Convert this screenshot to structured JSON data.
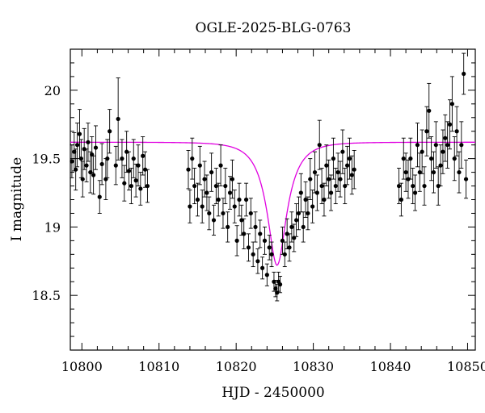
{
  "chart_data": {
    "type": "scatter",
    "title": "OGLE-2025-BLG-0763",
    "xlabel": "HJD - 2450000",
    "ylabel": "I magnitude",
    "xlim": [
      10798.5,
      10851
    ],
    "ylim": [
      20.3,
      18.1
    ],
    "y_inverted": true,
    "grid": false,
    "xticks": [
      10800,
      10810,
      10820,
      10830,
      10840,
      10850
    ],
    "yticks": [
      18.5,
      19,
      19.5,
      20
    ],
    "ytick_labels": [
      "18.5",
      "19",
      "19.5",
      "20"
    ],
    "model_curve": {
      "color": "#e000e0",
      "t0": 10825.3,
      "peak_mag": 18.72,
      "baseline_mag": 19.62,
      "tE": 3.0,
      "u0": 0.42
    },
    "series": [
      {
        "color": "#000000",
        "x": [
          10798.7,
          10799.0,
          10799.2,
          10799.4,
          10799.7,
          10799.9,
          10800.1,
          10800.3,
          10800.6,
          10800.8,
          10801.1,
          10801.3,
          10801.5,
          10801.8,
          10802.3,
          10802.6,
          10803.1,
          10803.3,
          10803.6,
          10804.4,
          10804.7,
          10805.2,
          10805.5,
          10805.8,
          10806.1,
          10806.4,
          10806.7,
          10807.0,
          10807.3,
          10807.6,
          10807.9,
          10808.2,
          10808.5,
          10813.8,
          10814.0,
          10814.3,
          10814.6,
          10815.0,
          10815.3,
          10815.6,
          10815.9,
          10816.2,
          10816.5,
          10816.8,
          10817.1,
          10817.4,
          10817.7,
          10818.0,
          10818.3,
          10818.6,
          10818.9,
          10819.2,
          10819.5,
          10819.8,
          10820.1,
          10820.4,
          10820.7,
          10821.0,
          10821.3,
          10821.6,
          10821.9,
          10822.2,
          10822.5,
          10822.8,
          10823.1,
          10823.4,
          10823.7,
          10824.0,
          10824.3,
          10824.6,
          10824.9,
          10825.1,
          10825.3,
          10825.5,
          10825.7,
          10826.0,
          10826.3,
          10826.6,
          10826.9,
          10827.2,
          10827.5,
          10827.8,
          10828.1,
          10828.4,
          10828.7,
          10829.0,
          10829.3,
          10829.6,
          10829.9,
          10830.2,
          10830.5,
          10830.8,
          10831.1,
          10831.4,
          10831.7,
          10832.0,
          10832.3,
          10832.6,
          10832.9,
          10833.2,
          10833.5,
          10833.8,
          10834.1,
          10834.4,
          10834.7,
          10835.0,
          10835.3,
          10841.1,
          10841.4,
          10841.7,
          10842.0,
          10842.3,
          10842.6,
          10842.9,
          10843.2,
          10843.5,
          10843.8,
          10844.1,
          10844.4,
          10844.7,
          10845.0,
          10845.3,
          10845.6,
          10845.9,
          10846.2,
          10846.5,
          10846.8,
          10847.1,
          10847.4,
          10847.7,
          10848.0,
          10848.3,
          10848.6,
          10848.9,
          10849.2,
          10849.5,
          10849.8
        ],
        "y": [
          19.48,
          19.55,
          19.42,
          19.6,
          19.68,
          19.5,
          19.35,
          19.57,
          19.45,
          19.62,
          19.4,
          19.53,
          19.38,
          19.58,
          19.22,
          19.46,
          19.35,
          19.5,
          19.7,
          19.45,
          19.79,
          19.5,
          19.32,
          19.55,
          19.41,
          19.3,
          19.5,
          19.34,
          19.45,
          19.28,
          19.52,
          19.42,
          19.3,
          19.42,
          19.15,
          19.5,
          19.3,
          19.2,
          19.45,
          19.15,
          19.35,
          19.25,
          19.1,
          19.4,
          19.05,
          19.3,
          19.2,
          19.45,
          19.1,
          19.3,
          19.0,
          19.25,
          19.35,
          19.15,
          18.9,
          19.2,
          19.05,
          18.95,
          19.2,
          18.85,
          19.1,
          18.8,
          19.0,
          18.75,
          18.95,
          18.7,
          18.9,
          18.65,
          18.85,
          18.8,
          18.6,
          18.55,
          18.52,
          18.6,
          18.58,
          18.9,
          18.8,
          18.95,
          18.85,
          19.0,
          18.92,
          19.05,
          19.1,
          19.25,
          19.0,
          19.2,
          19.1,
          19.35,
          19.15,
          19.4,
          19.25,
          19.6,
          19.3,
          19.2,
          19.45,
          19.35,
          19.25,
          19.5,
          19.3,
          19.4,
          19.35,
          19.55,
          19.3,
          19.45,
          19.5,
          19.38,
          19.42,
          19.3,
          19.2,
          19.5,
          19.4,
          19.35,
          19.5,
          19.3,
          19.25,
          19.6,
          19.4,
          19.55,
          19.3,
          19.7,
          19.85,
          19.5,
          19.4,
          19.6,
          19.3,
          19.45,
          19.55,
          19.65,
          19.6,
          19.75,
          19.9,
          19.5,
          19.7,
          19.4,
          19.6,
          20.12,
          19.35
        ],
        "err": [
          0.12,
          0.14,
          0.15,
          0.16,
          0.18,
          0.14,
          0.13,
          0.15,
          0.12,
          0.14,
          0.15,
          0.13,
          0.14,
          0.16,
          0.12,
          0.15,
          0.15,
          0.14,
          0.16,
          0.14,
          0.3,
          0.14,
          0.13,
          0.15,
          0.14,
          0.13,
          0.14,
          0.12,
          0.15,
          0.12,
          0.14,
          0.13,
          0.12,
          0.14,
          0.12,
          0.15,
          0.13,
          0.12,
          0.14,
          0.12,
          0.13,
          0.13,
          0.12,
          0.14,
          0.11,
          0.13,
          0.12,
          0.15,
          0.11,
          0.13,
          0.11,
          0.12,
          0.14,
          0.12,
          0.11,
          0.12,
          0.11,
          0.11,
          0.12,
          0.1,
          0.11,
          0.09,
          0.11,
          0.09,
          0.1,
          0.08,
          0.1,
          0.08,
          0.09,
          0.09,
          0.07,
          0.06,
          0.06,
          0.07,
          0.06,
          0.1,
          0.09,
          0.11,
          0.1,
          0.11,
          0.1,
          0.12,
          0.12,
          0.14,
          0.11,
          0.13,
          0.12,
          0.15,
          0.12,
          0.15,
          0.13,
          0.18,
          0.13,
          0.12,
          0.15,
          0.14,
          0.13,
          0.15,
          0.13,
          0.14,
          0.13,
          0.16,
          0.13,
          0.14,
          0.15,
          0.14,
          0.14,
          0.13,
          0.12,
          0.15,
          0.14,
          0.14,
          0.15,
          0.13,
          0.13,
          0.16,
          0.14,
          0.16,
          0.14,
          0.18,
          0.2,
          0.16,
          0.15,
          0.17,
          0.14,
          0.15,
          0.16,
          0.17,
          0.17,
          0.18,
          0.2,
          0.16,
          0.18,
          0.15,
          0.17,
          0.15,
          0.14
        ]
      }
    ]
  }
}
